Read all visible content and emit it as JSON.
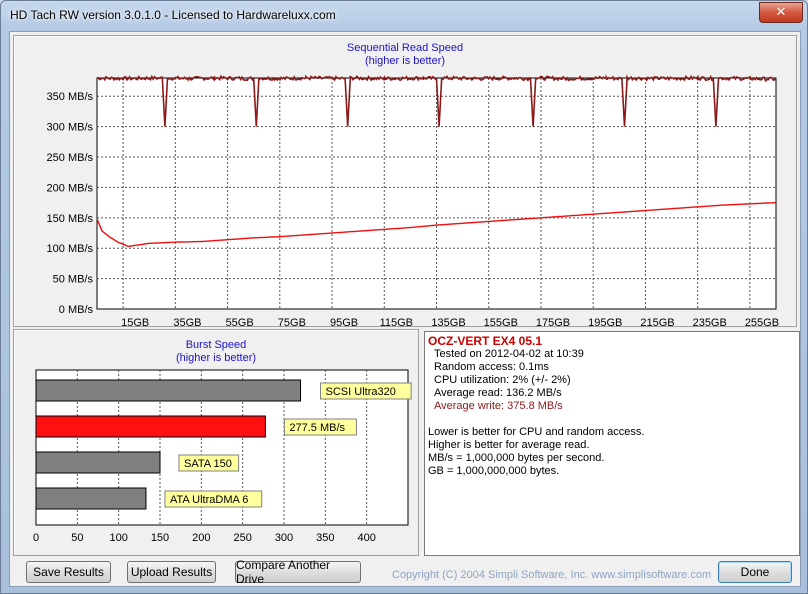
{
  "window": {
    "title": "HD Tach RW version 3.0.1.0 - Licensed to Hardwareluxx.com"
  },
  "seq_chart": {
    "title": "Sequential Read Speed",
    "subtitle": "(higher is better)"
  },
  "burst_chart": {
    "title": "Burst Speed",
    "subtitle": "(higher is better)"
  },
  "chart_data": [
    {
      "type": "line",
      "title": "Sequential Read Speed",
      "subtitle": "(higher is better)",
      "ylabel": "",
      "xlabel": "",
      "ylim": [
        0,
        380
      ],
      "xlim": [
        0,
        260
      ],
      "yticks": [
        "0 MB/s",
        "50 MB/s",
        "100 MB/s",
        "150 MB/s",
        "200 MB/s",
        "250 MB/s",
        "300 MB/s",
        "350 MB/s"
      ],
      "xticks": [
        "15GB",
        "35GB",
        "55GB",
        "75GB",
        "95GB",
        "115GB",
        "135GB",
        "155GB",
        "175GB",
        "195GB",
        "215GB",
        "235GB",
        "255GB"
      ],
      "grid": true,
      "series": [
        {
          "color": "#8b1a1a",
          "x": [
            0,
            10,
            25,
            26,
            27,
            35,
            45,
            60,
            61,
            62,
            70,
            80,
            95,
            96,
            97,
            110,
            125,
            130,
            131,
            132,
            145,
            160,
            166,
            167,
            168,
            180,
            195,
            201,
            202,
            203,
            215,
            230,
            236,
            237,
            238,
            250,
            260
          ],
          "values": [
            380,
            379,
            380,
            300,
            380,
            379,
            380,
            379,
            300,
            380,
            379,
            380,
            379,
            300,
            380,
            379,
            380,
            379,
            300,
            380,
            379,
            380,
            379,
            300,
            380,
            379,
            380,
            379,
            300,
            380,
            379,
            380,
            379,
            300,
            380,
            379,
            378
          ]
        },
        {
          "color": "#ee1010",
          "x": [
            0,
            2,
            5,
            8,
            12,
            20,
            30,
            40,
            50,
            60,
            70,
            80,
            90,
            100,
            110,
            120,
            130,
            140,
            150,
            160,
            170,
            180,
            190,
            200,
            210,
            220,
            230,
            240,
            250,
            260
          ],
          "values": [
            148,
            128,
            118,
            110,
            103,
            108,
            110,
            111,
            114,
            117,
            119,
            122,
            125,
            128,
            131,
            134,
            138,
            141,
            144,
            147,
            150,
            153,
            156,
            159,
            162,
            165,
            168,
            171,
            173,
            175
          ]
        }
      ]
    },
    {
      "type": "bar",
      "orientation": "horizontal",
      "title": "Burst Speed",
      "subtitle": "(higher is better)",
      "categories": [
        "SCSI Ultra320",
        "277.5 MB/s",
        "SATA 150",
        "ATA UltraDMA 6"
      ],
      "values": [
        320,
        277.5,
        150,
        133
      ],
      "colors": [
        "#808080",
        "#ff1010",
        "#808080",
        "#808080"
      ],
      "xlim": [
        0,
        450
      ],
      "xticks": [
        "0",
        "50",
        "100",
        "150",
        "200",
        "250",
        "300",
        "350",
        "400"
      ]
    }
  ],
  "info": {
    "drive_name": "OCZ-VERT EX4 05.1",
    "tested_on": "Tested on 2012-04-02 at 10:39",
    "random_access": "Random access: 0.1ms",
    "cpu": "CPU utilization: 2% (+/- 2%)",
    "avg_read": "Average read: 136.2 MB/s",
    "avg_write": "Average write: 375.8 MB/s",
    "note1": "Lower is better for CPU and random access.",
    "note2": "Higher is better for average read.",
    "note3": "MB/s = 1,000,000 bytes per second.",
    "note4": "GB = 1,000,000,000 bytes."
  },
  "buttons": {
    "save": "Save Results",
    "upload": "Upload Results",
    "compare": "Compare Another Drive",
    "done": "Done"
  },
  "copyright": "Copyright (C) 2004 Simpli Software, Inc. www.simplisoftware.com",
  "colors": {
    "title_blue": "#1a14c8",
    "read_line": "#ee1010",
    "write_line": "#8b1a1a",
    "drive_name": "#cc0000"
  }
}
